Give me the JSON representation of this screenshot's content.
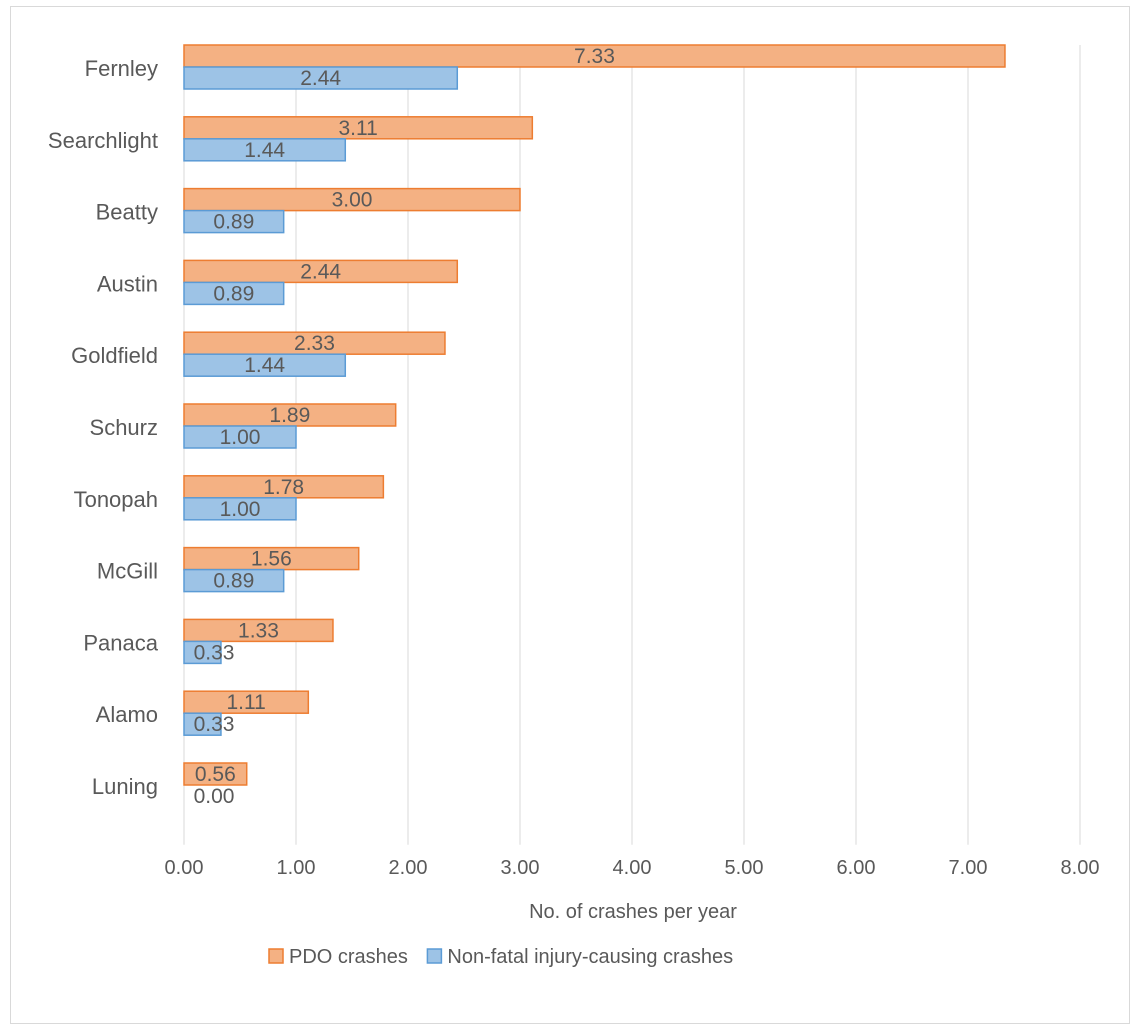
{
  "chart_data": {
    "type": "bar",
    "orientation": "horizontal",
    "categories": [
      "Fernley",
      "Searchlight",
      "Beatty",
      "Austin",
      "Goldfield",
      "Schurz",
      "Tonopah",
      "McGill",
      "Panaca",
      "Alamo",
      "Luning"
    ],
    "series": [
      {
        "name": "PDO crashes",
        "values": [
          7.33,
          3.11,
          3.0,
          2.44,
          2.33,
          1.89,
          1.78,
          1.56,
          1.33,
          1.11,
          0.56
        ],
        "labels": [
          "7.33",
          "3.11",
          "3.00",
          "2.44",
          "2.33",
          "1.89",
          "1.78",
          "1.56",
          "1.33",
          "1.11",
          "0.56"
        ],
        "color": "#f4b183",
        "border_color": "#ed7d31"
      },
      {
        "name": "Non-fatal injury-causing crashes",
        "values": [
          2.44,
          1.44,
          0.89,
          0.89,
          1.44,
          1.0,
          1.0,
          0.89,
          0.33,
          0.33,
          0.0
        ],
        "labels": [
          "2.44",
          "1.44",
          "0.89",
          "0.89",
          "1.44",
          "1.00",
          "1.00",
          "0.89",
          "0.33",
          "0.33",
          "0.00"
        ],
        "color": "#9dc3e6",
        "border_color": "#5b9bd5"
      }
    ],
    "xticks": [
      "0.00",
      "1.00",
      "2.00",
      "3.00",
      "4.00",
      "5.00",
      "6.00",
      "7.00",
      "8.00"
    ],
    "xlim": [
      0,
      8
    ],
    "xlabel": "No. of crashes per year",
    "ylabel": "",
    "title": "",
    "grid": "vertical",
    "legend_position": "bottom"
  }
}
